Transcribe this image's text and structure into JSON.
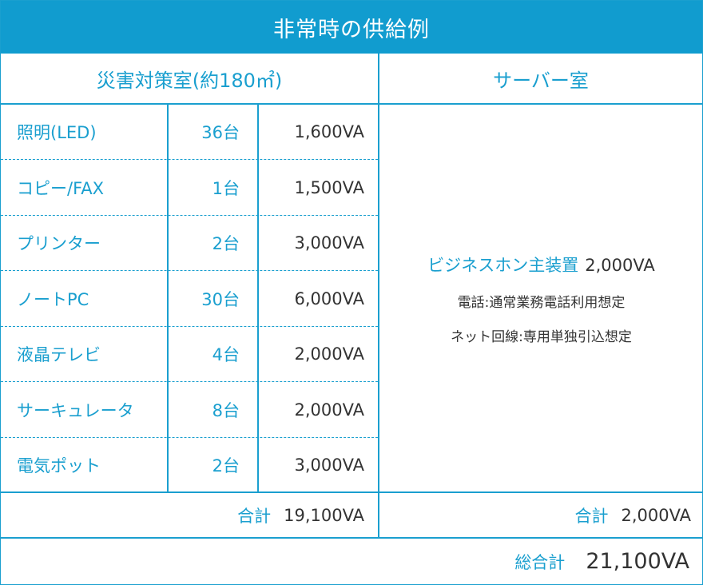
{
  "title": "非常時の供給例",
  "office": {
    "header": "災害対策室(約180㎡)",
    "rows": [
      {
        "item": "照明(LED)",
        "qty": "36台",
        "power": "1,600VA"
      },
      {
        "item": "コピー/FAX",
        "qty": "1台",
        "power": "1,500VA"
      },
      {
        "item": "プリンター",
        "qty": "2台",
        "power": "3,000VA"
      },
      {
        "item": "ノートPC",
        "qty": "30台",
        "power": "6,000VA"
      },
      {
        "item": "液晶テレビ",
        "qty": "4台",
        "power": "2,000VA"
      },
      {
        "item": "サーキュレータ",
        "qty": "8台",
        "power": "2,000VA"
      },
      {
        "item": "電気ポット",
        "qty": "2台",
        "power": "3,000VA"
      }
    ],
    "subtotal_label": "合計",
    "subtotal_value": "19,100VA"
  },
  "server": {
    "header": "サーバー室",
    "device": "ビジネスホン主装置",
    "device_power": "2,000VA",
    "notes": [
      "電話:通常業務電話利用想定",
      "ネット回線:専用単独引込想定"
    ],
    "subtotal_label": "合計",
    "subtotal_value": "2,000VA"
  },
  "grand_total": {
    "label": "総合計",
    "value": "21,100VA"
  },
  "colors": {
    "accent": "#1a9fcf",
    "title_bg": "#119ccf",
    "text": "#333333"
  }
}
